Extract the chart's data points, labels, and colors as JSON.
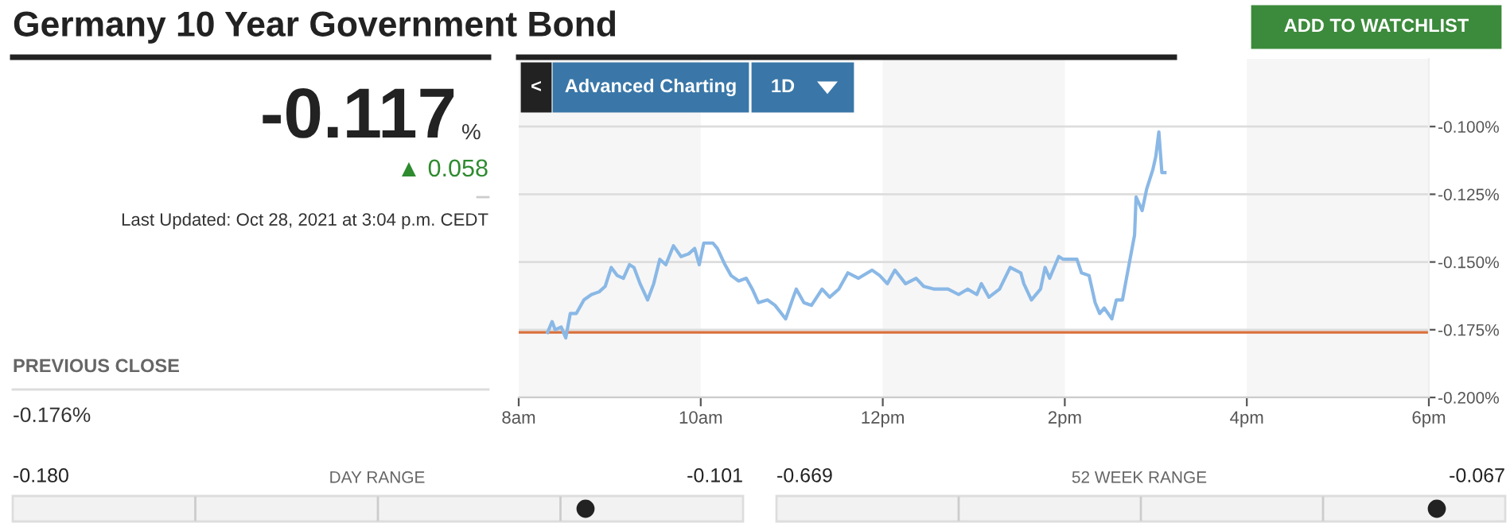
{
  "chart_data": {
    "type": "line",
    "title": "Germany 10 Year Government Bond",
    "series": [
      {
        "color": "#8ab8e6",
        "x": [
          "2021-10-28T08:19",
          "2021-10-28T08:22",
          "2021-10-28T08:24",
          "2021-10-28T08:28",
          "2021-10-28T08:31",
          "2021-10-28T08:34",
          "2021-10-28T08:38",
          "2021-10-28T08:43",
          "2021-10-28T08:48",
          "2021-10-28T08:53",
          "2021-10-28T08:57",
          "2021-10-28T09:01",
          "2021-10-28T09:05",
          "2021-10-28T09:09",
          "2021-10-28T09:13",
          "2021-10-28T09:16",
          "2021-10-28T09:20",
          "2021-10-28T09:25",
          "2021-10-28T09:29",
          "2021-10-28T09:33",
          "2021-10-28T09:37",
          "2021-10-28T09:42",
          "2021-10-28T09:47",
          "2021-10-28T09:52",
          "2021-10-28T09:56",
          "2021-10-28T09:59",
          "2021-10-28T10:02",
          "2021-10-28T10:08",
          "2021-10-28T10:11",
          "2021-10-28T10:16",
          "2021-10-28T10:20",
          "2021-10-28T10:25",
          "2021-10-28T10:30",
          "2021-10-28T10:34",
          "2021-10-28T10:38",
          "2021-10-28T10:44",
          "2021-10-28T10:49",
          "2021-10-28T10:56",
          "2021-10-28T11:01",
          "2021-10-28T11:03",
          "2021-10-28T11:08",
          "2021-10-28T11:13",
          "2021-10-28T11:20",
          "2021-10-28T11:25",
          "2021-10-28T11:31",
          "2021-10-28T11:37",
          "2021-10-28T11:44",
          "2021-10-28T11:53",
          "2021-10-28T11:58",
          "2021-10-28T12:03",
          "2021-10-28T12:08",
          "2021-10-28T12:15",
          "2021-10-28T12:22",
          "2021-10-28T12:27",
          "2021-10-28T12:34",
          "2021-10-28T12:43",
          "2021-10-28T12:50",
          "2021-10-28T12:56",
          "2021-10-28T13:02",
          "2021-10-28T13:05",
          "2021-10-28T13:10",
          "2021-10-28T13:17",
          "2021-10-28T13:24",
          "2021-10-28T13:31",
          "2021-10-28T13:33",
          "2021-10-28T13:38",
          "2021-10-28T13:44",
          "2021-10-28T13:47",
          "2021-10-28T13:50",
          "2021-10-28T13:56",
          "2021-10-28T13:59",
          "2021-10-28T14:04",
          "2021-10-28T14:08",
          "2021-10-28T14:11",
          "2021-10-28T14:16",
          "2021-10-28T14:20",
          "2021-10-28T14:23",
          "2021-10-28T14:26",
          "2021-10-28T14:31",
          "2021-10-28T14:34",
          "2021-10-28T14:38",
          "2021-10-28T14:42",
          "2021-10-28T14:46",
          "2021-10-28T14:47",
          "2021-10-28T14:51",
          "2021-10-28T14:54",
          "2021-10-28T14:58",
          "2021-10-28T15:00",
          "2021-10-28T15:02",
          "2021-10-28T15:04",
          "2021-10-28T15:06"
        ],
        "values": [
          -0.176,
          -0.172,
          -0.175,
          -0.174,
          -0.178,
          -0.169,
          -0.169,
          -0.164,
          -0.162,
          -0.161,
          -0.159,
          -0.152,
          -0.155,
          -0.156,
          -0.151,
          -0.152,
          -0.158,
          -0.164,
          -0.158,
          -0.149,
          -0.151,
          -0.144,
          -0.148,
          -0.147,
          -0.145,
          -0.151,
          -0.143,
          -0.143,
          -0.145,
          -0.151,
          -0.155,
          -0.157,
          -0.156,
          -0.16,
          -0.165,
          -0.164,
          -0.166,
          -0.171,
          -0.163,
          -0.16,
          -0.165,
          -0.166,
          -0.16,
          -0.163,
          -0.16,
          -0.154,
          -0.156,
          -0.153,
          -0.155,
          -0.158,
          -0.153,
          -0.158,
          -0.156,
          -0.159,
          -0.16,
          -0.16,
          -0.162,
          -0.16,
          -0.162,
          -0.158,
          -0.163,
          -0.16,
          -0.152,
          -0.154,
          -0.158,
          -0.164,
          -0.16,
          -0.152,
          -0.156,
          -0.148,
          -0.149,
          -0.149,
          -0.149,
          -0.154,
          -0.155,
          -0.165,
          -0.169,
          -0.167,
          -0.171,
          -0.164,
          -0.164,
          -0.152,
          -0.14,
          -0.126,
          -0.131,
          -0.123,
          -0.116,
          -0.111,
          -0.102,
          -0.117,
          -0.117
        ]
      }
    ],
    "xlim": [
      "2021-10-28T08:00",
      "2021-10-28T18:00"
    ],
    "xticks": [
      {
        "value": "2021-10-28T08:00",
        "label": "8am"
      },
      {
        "value": "2021-10-28T10:00",
        "label": "10am"
      },
      {
        "value": "2021-10-28T12:00",
        "label": "12pm"
      },
      {
        "value": "2021-10-28T14:00",
        "label": "2pm"
      },
      {
        "value": "2021-10-28T16:00",
        "label": "4pm"
      },
      {
        "value": "2021-10-28T18:00",
        "label": "6pm"
      }
    ],
    "ylim": [
      -0.2,
      -0.075
    ],
    "yticks": [
      {
        "value": -0.2,
        "label": "-0.200%"
      },
      {
        "value": -0.175,
        "label": "-0.175%"
      },
      {
        "value": -0.15,
        "label": "-0.150%"
      },
      {
        "value": -0.125,
        "label": "-0.125%"
      },
      {
        "value": -0.1,
        "label": "-0.100%"
      }
    ],
    "grid": "y",
    "ref_lines": [
      {
        "axis": "y",
        "value": -0.176,
        "color": "#d9703c"
      }
    ],
    "bands": [
      {
        "axis": "x",
        "from": "2021-10-28T08:00",
        "to": "2021-10-28T10:00",
        "color": "#f6f6f6"
      },
      {
        "axis": "x",
        "from": "2021-10-28T12:00",
        "to": "2021-10-28T14:00",
        "color": "#f6f6f6"
      },
      {
        "axis": "x",
        "from": "2021-10-28T16:00",
        "to": "2021-10-28T18:00",
        "color": "#f6f6f6"
      }
    ],
    "annotations": [
      "ADD TO WATCHLIST",
      "-0.117",
      "%",
      "▲ 0.058",
      "Last Updated: Oct 28, 2021 at 3:04 p.m. CEDT",
      "PREVIOUS CLOSE",
      "-0.176%",
      "-0.180",
      "DAY RANGE",
      "-0.101",
      "-0.669",
      "52 WEEK RANGE",
      "-0.067",
      "Advanced Charting",
      "1D",
      "<"
    ]
  }
}
